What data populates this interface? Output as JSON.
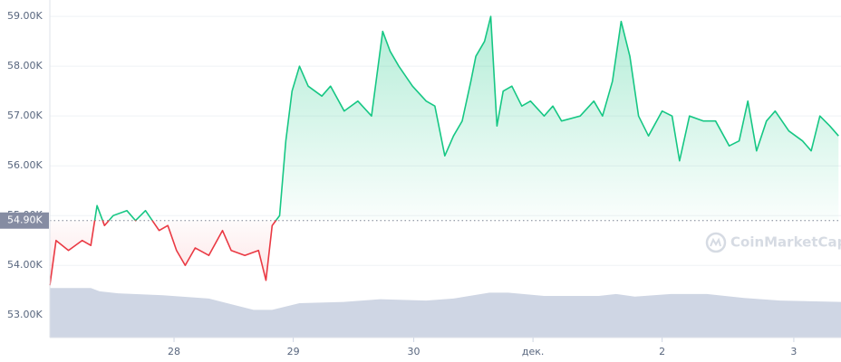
{
  "chart_data": {
    "type": "line",
    "x": [
      0,
      0.05,
      0.15,
      0.26,
      0.33,
      0.38,
      0.44,
      0.51,
      0.62,
      0.69,
      0.77,
      0.88,
      0.95,
      1.02,
      1.09,
      1.17,
      1.28,
      1.39,
      1.46,
      1.57,
      1.68,
      1.74,
      1.79,
      1.85,
      1.9,
      1.95,
      2.01,
      2.08,
      2.19,
      2.26,
      2.37,
      2.48,
      2.59,
      2.68,
      2.74,
      2.81,
      2.92,
      3.03,
      3.1,
      3.18,
      3.25,
      3.32,
      3.39,
      3.43,
      3.5,
      3.55,
      3.6,
      3.65,
      3.72,
      3.8,
      3.87,
      3.98,
      4.05,
      4.12,
      4.27,
      4.38,
      4.45,
      4.53,
      4.6,
      4.67,
      4.74,
      4.82,
      4.93,
      5.01,
      5.07,
      5.15,
      5.26,
      5.36,
      5.47,
      5.55,
      5.62,
      5.69,
      5.77,
      5.84,
      5.95,
      6.06,
      6.13,
      6.2,
      6.28,
      6.35
    ],
    "values": [
      53600,
      54500,
      54300,
      54500,
      54400,
      55200,
      54800,
      55000,
      55100,
      54900,
      55100,
      54700,
      54800,
      54300,
      54000,
      54350,
      54200,
      54700,
      54300,
      54200,
      54300,
      53700,
      54800,
      55000,
      56500,
      57500,
      58000,
      57600,
      57400,
      57600,
      57100,
      57300,
      57000,
      58700,
      58300,
      58000,
      57600,
      57300,
      57200,
      56200,
      56600,
      56900,
      57700,
      58200,
      58500,
      59000,
      56800,
      57500,
      57600,
      57200,
      57300,
      57000,
      57200,
      56900,
      57000,
      57300,
      57000,
      57700,
      58900,
      58200,
      57000,
      56600,
      57100,
      57000,
      56100,
      57000,
      56900,
      56900,
      56400,
      56500,
      57300,
      56300,
      56900,
      57100,
      56700,
      56500,
      56300,
      57000,
      56800,
      56600
    ],
    "above_color": "#16c784",
    "below_color": "#ea3943",
    "baseline": {
      "value": 54900,
      "label": "54.90K"
    },
    "volume": {
      "x": [
        0,
        0.33,
        0.4,
        0.55,
        0.91,
        1.28,
        1.64,
        1.79,
        2.01,
        2.37,
        2.66,
        3.03,
        3.25,
        3.54,
        3.69,
        3.98,
        4.42,
        4.56,
        4.71,
        5.0,
        5.29,
        5.59,
        5.88,
        6.37
      ],
      "values": [
        75,
        75,
        70,
        67,
        64,
        59,
        42,
        42,
        52,
        54,
        58,
        56,
        59,
        68,
        68,
        63,
        63,
        66,
        62,
        66,
        66,
        60,
        56,
        54
      ],
      "color": "#cfd6e4",
      "axis": "y2"
    },
    "y2lim": [
      0,
      100
    ],
    "xlim": [
      0,
      6.37
    ],
    "xticks": [
      {
        "value": 1.0,
        "label": "28"
      },
      {
        "value": 1.96,
        "label": "29"
      },
      {
        "value": 2.93,
        "label": "30"
      },
      {
        "value": 3.89,
        "label": "дек."
      },
      {
        "value": 4.93,
        "label": "2"
      },
      {
        "value": 5.99,
        "label": "3"
      }
    ],
    "ylim": [
      52550,
      59330
    ],
    "yticks": [
      {
        "value": 53000,
        "label": "53.00K"
      },
      {
        "value": 54000,
        "label": "54.00K"
      },
      {
        "value": 55000,
        "label": "55.00K"
      },
      {
        "value": 56000,
        "label": "56.00K"
      },
      {
        "value": 57000,
        "label": "57.00K"
      },
      {
        "value": 58000,
        "label": "58.00K"
      },
      {
        "value": 59000,
        "label": "59.00K"
      }
    ],
    "grid": true,
    "watermark": "CoinMarketCap"
  }
}
